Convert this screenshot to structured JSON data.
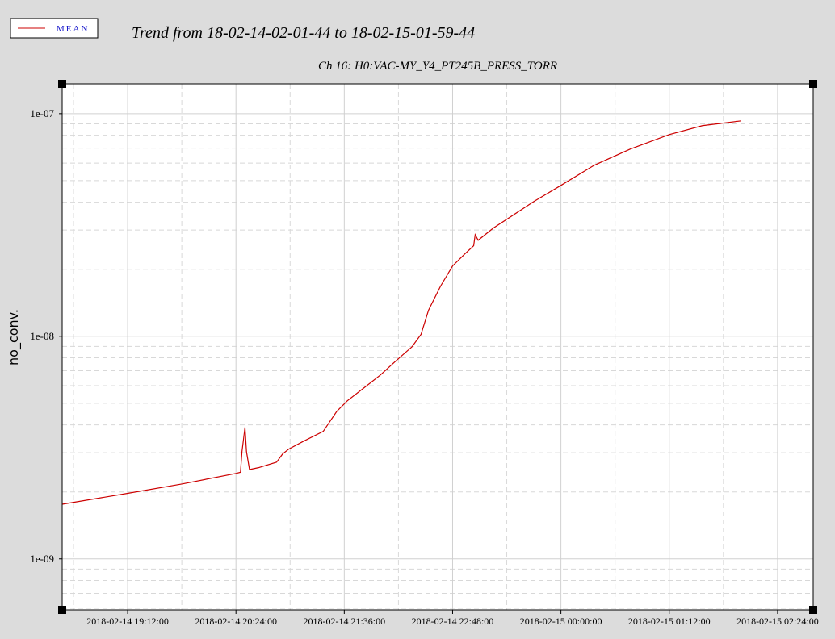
{
  "chart_data": {
    "type": "line",
    "title": "Trend from 18-02-14-02-01-44 to 18-02-15-01-59-44",
    "subtitle": "Ch 16: H0:VAC-MY_Y4_PT245B_PRESS_TORR",
    "ylabel": "no_conv.",
    "log_y": true,
    "grid": true,
    "legend": "top-left",
    "x": [
      "2018-02-14 18:28:30",
      "2018-02-14 19:12:00",
      "2018-02-14 19:48:00",
      "2018-02-14 20:24:00",
      "2018-02-14 20:27:00",
      "2018-02-14 20:28:00",
      "2018-02-14 20:30:00",
      "2018-02-14 20:31:00",
      "2018-02-14 20:33:00",
      "2018-02-14 20:39:00",
      "2018-02-14 20:51:00",
      "2018-02-14 20:55:00",
      "2018-02-14 20:59:00",
      "2018-02-14 21:09:00",
      "2018-02-14 21:22:00",
      "2018-02-14 21:31:00",
      "2018-02-14 21:38:00",
      "2018-02-14 21:49:00",
      "2018-02-14 22:00:00",
      "2018-02-14 22:10:00",
      "2018-02-14 22:21:00",
      "2018-02-14 22:27:00",
      "2018-02-14 22:32:00",
      "2018-02-14 22:40:00",
      "2018-02-14 22:48:00",
      "2018-02-14 22:56:00",
      "2018-02-14 23:02:00",
      "2018-02-14 23:03:00",
      "2018-02-14 23:05:00",
      "2018-02-14 23:15:00",
      "2018-02-14 23:42:00",
      "2018-02-15 00:00:00",
      "2018-02-15 00:22:00",
      "2018-02-15 00:46:00",
      "2018-02-15 01:12:00",
      "2018-02-15 01:34:00",
      "2018-02-15 01:59:44"
    ],
    "series": [
      {
        "name": "MEAN",
        "color": "#cc0000",
        "values": [
          1.76e-09,
          1.97e-09,
          2.17e-09,
          2.42e-09,
          2.45e-09,
          3.03e-09,
          3.9e-09,
          3.03e-09,
          2.52e-09,
          2.57e-09,
          2.72e-09,
          2.96e-09,
          3.11e-09,
          3.38e-09,
          3.74e-09,
          4.6e-09,
          5.13e-09,
          5.86e-09,
          6.7e-09,
          7.72e-09,
          8.97e-09,
          1.02e-08,
          1.31e-08,
          1.68e-08,
          2.07e-08,
          2.34e-08,
          2.55e-08,
          2.86e-08,
          2.7e-08,
          3.06e-08,
          4.03e-08,
          4.76e-08,
          5.86e-08,
          6.93e-08,
          8.05e-08,
          8.83e-08,
          9.28e-08
        ]
      }
    ],
    "xlim": [
      "2018-02-14 18:28:30",
      "2018-02-15 02:47:40"
    ],
    "xticks": [
      "2018-02-14 19:12:00",
      "2018-02-14 20:24:00",
      "2018-02-14 21:36:00",
      "2018-02-14 22:48:00",
      "2018-02-15 00:00:00",
      "2018-02-15 01:12:00",
      "2018-02-15 02:24:00"
    ],
    "x_minor_ticks": [
      "2018-02-14 18:36:00",
      "2018-02-14 19:48:00",
      "2018-02-14 21:00:00",
      "2018-02-14 22:12:00",
      "2018-02-14 23:24:00",
      "2018-02-15 00:36:00",
      "2018-02-15 01:48:00"
    ],
    "ylim": [
      5.9e-10,
      1.36e-07
    ],
    "yticks": [
      {
        "value": 1e-09,
        "label": "1e-09"
      },
      {
        "value": 1e-08,
        "label": "1e-08"
      },
      {
        "value": 1e-07,
        "label": "1e-07"
      }
    ],
    "y_minor_ticks": [
      6e-10,
      7e-10,
      8e-10,
      9e-10,
      2e-09,
      3e-09,
      4e-09,
      5e-09,
      6e-09,
      7e-09,
      8e-09,
      9e-09,
      2e-08,
      3e-08,
      4e-08,
      5e-08,
      6e-08,
      7e-08,
      8e-08,
      9e-08
    ]
  }
}
